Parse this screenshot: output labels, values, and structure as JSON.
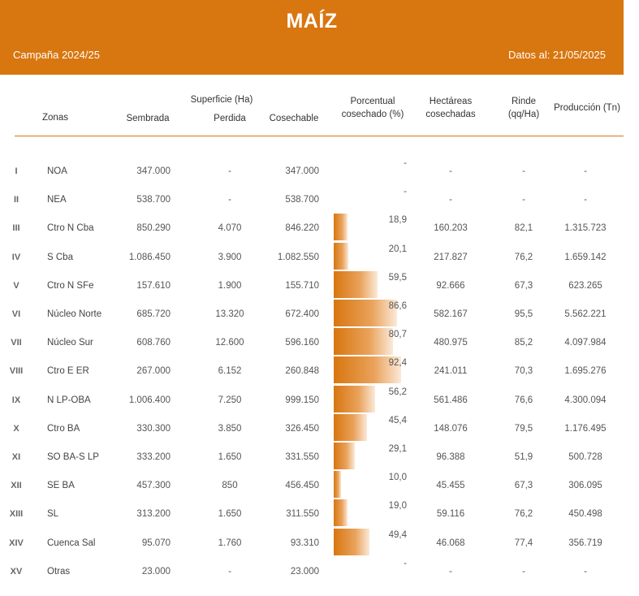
{
  "header": {
    "title": "MAÍZ",
    "campaign": "Campaña 2024/25",
    "date": "Datos al: 21/05/2025"
  },
  "columns": {
    "zonas": "Zonas",
    "superficie": "Superficie (Ha)",
    "sembrada": "Sembrada",
    "perdida": "Perdida",
    "cosechable": "Cosechable",
    "porcentual_1": "Porcentual",
    "porcentual_2": "cosechado (%)",
    "hectareas_1": "Hectáreas",
    "hectareas_2": "cosechadas",
    "rinde_1": "Rinde",
    "rinde_2": "(qq/Ha)",
    "produccion": "Producción (Tn)"
  },
  "rows": [
    {
      "roman": "I",
      "zona": "NOA",
      "sembrada": "347.000",
      "perdida": "-",
      "cosechable": "347.000",
      "pct_label": "-",
      "pct": 0,
      "hectareas": "-",
      "rinde": "-",
      "produccion": "-"
    },
    {
      "roman": "II",
      "zona": "NEA",
      "sembrada": "538.700",
      "perdida": "-",
      "cosechable": "538.700",
      "pct_label": "-",
      "pct": 0,
      "hectareas": "-",
      "rinde": "-",
      "produccion": "-"
    },
    {
      "roman": "III",
      "zona": "Ctro N Cba",
      "sembrada": "850.290",
      "perdida": "4.070",
      "cosechable": "846.220",
      "pct_label": "18,9",
      "pct": 18.9,
      "hectareas": "160.203",
      "rinde": "82,1",
      "produccion": "1.315.723"
    },
    {
      "roman": "IV",
      "zona": "S Cba",
      "sembrada": "1.086.450",
      "perdida": "3.900",
      "cosechable": "1.082.550",
      "pct_label": "20,1",
      "pct": 20.1,
      "hectareas": "217.827",
      "rinde": "76,2",
      "produccion": "1.659.142"
    },
    {
      "roman": "V",
      "zona": "Ctro N SFe",
      "sembrada": "157.610",
      "perdida": "1.900",
      "cosechable": "155.710",
      "pct_label": "59,5",
      "pct": 59.5,
      "hectareas": "92.666",
      "rinde": "67,3",
      "produccion": "623.265"
    },
    {
      "roman": "VI",
      "zona": "Núcleo Norte",
      "sembrada": "685.720",
      "perdida": "13.320",
      "cosechable": "672.400",
      "pct_label": "86,6",
      "pct": 86.6,
      "hectareas": "582.167",
      "rinde": "95,5",
      "produccion": "5.562.221"
    },
    {
      "roman": "VII",
      "zona": "Núcleo Sur",
      "sembrada": "608.760",
      "perdida": "12.600",
      "cosechable": "596.160",
      "pct_label": "80,7",
      "pct": 80.7,
      "hectareas": "480.975",
      "rinde": "85,2",
      "produccion": "4.097.984"
    },
    {
      "roman": "VIII",
      "zona": "Ctro E ER",
      "sembrada": "267.000",
      "perdida": "6.152",
      "cosechable": "260.848",
      "pct_label": "92,4",
      "pct": 92.4,
      "hectareas": "241.011",
      "rinde": "70,3",
      "produccion": "1.695.276"
    },
    {
      "roman": "IX",
      "zona": "N LP-OBA",
      "sembrada": "1.006.400",
      "perdida": "7.250",
      "cosechable": "999.150",
      "pct_label": "56,2",
      "pct": 56.2,
      "hectareas": "561.486",
      "rinde": "76,6",
      "produccion": "4.300.094"
    },
    {
      "roman": "X",
      "zona": "Ctro BA",
      "sembrada": "330.300",
      "perdida": "3.850",
      "cosechable": "326.450",
      "pct_label": "45,4",
      "pct": 45.4,
      "hectareas": "148.076",
      "rinde": "79,5",
      "produccion": "1.176.495"
    },
    {
      "roman": "XI",
      "zona": "SO BA-S LP",
      "sembrada": "333.200",
      "perdida": "1.650",
      "cosechable": "331.550",
      "pct_label": "29,1",
      "pct": 29.1,
      "hectareas": "96.388",
      "rinde": "51,9",
      "produccion": "500.728"
    },
    {
      "roman": "XII",
      "zona": "SE BA",
      "sembrada": "457.300",
      "perdida": "850",
      "cosechable": "456.450",
      "pct_label": "10,0",
      "pct": 10.0,
      "hectareas": "45.455",
      "rinde": "67,3",
      "produccion": "306.095"
    },
    {
      "roman": "XIII",
      "zona": "SL",
      "sembrada": "313.200",
      "perdida": "1.650",
      "cosechable": "311.550",
      "pct_label": "19,0",
      "pct": 19.0,
      "hectareas": "59.116",
      "rinde": "76,2",
      "produccion": "450.498"
    },
    {
      "roman": "XIV",
      "zona": "Cuenca Sal",
      "sembrada": "95.070",
      "perdida": "1.760",
      "cosechable": "93.310",
      "pct_label": "49,4",
      "pct": 49.4,
      "hectareas": "46.068",
      "rinde": "77,4",
      "produccion": "356.719"
    },
    {
      "roman": "XV",
      "zona": "Otras",
      "sembrada": "23.000",
      "perdida": "-",
      "cosechable": "23.000",
      "pct_label": "-",
      "pct": 0,
      "hectareas": "-",
      "rinde": "-",
      "produccion": "-"
    }
  ],
  "colors": {
    "accent": "#D8760F",
    "text": "#555555"
  }
}
